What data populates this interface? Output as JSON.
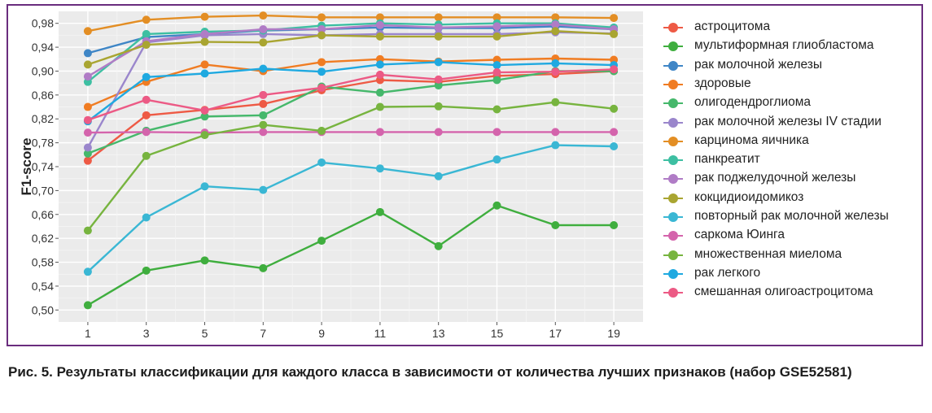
{
  "chart_data": {
    "type": "line",
    "ylabel": "F1-score",
    "x": [
      1,
      3,
      5,
      7,
      9,
      11,
      13,
      15,
      17,
      19
    ],
    "ylim": [
      0.48,
      1.0
    ],
    "yticks": [
      "0,50",
      "0,54",
      "0,58",
      "0,62",
      "0,66",
      "0,70",
      "0,74",
      "0,78",
      "0,82",
      "0,86",
      "0,90",
      "0,94",
      "0,98"
    ],
    "ytick_values": [
      0.5,
      0.54,
      0.58,
      0.62,
      0.66,
      0.7,
      0.74,
      0.78,
      0.82,
      0.86,
      0.9,
      0.94,
      0.98
    ],
    "grid": true,
    "legend_position": "right",
    "series": [
      {
        "name": "астроцитома",
        "color": "#ee5a45",
        "values": [
          0.75,
          0.826,
          0.835,
          0.845,
          0.868,
          0.885,
          0.882,
          0.892,
          0.895,
          0.9
        ]
      },
      {
        "name": "мультиформная глиобластома",
        "color": "#3fae3e",
        "values": [
          0.508,
          0.566,
          0.583,
          0.57,
          0.616,
          0.664,
          0.607,
          0.675,
          0.642,
          0.642
        ]
      },
      {
        "name": "рак молочной железы",
        "color": "#3f86c6",
        "values": [
          0.93,
          0.957,
          0.962,
          0.968,
          0.97,
          0.973,
          0.972,
          0.972,
          0.975,
          0.97
        ]
      },
      {
        "name": "здоровые",
        "color": "#f07c22",
        "values": [
          0.84,
          0.882,
          0.911,
          0.9,
          0.915,
          0.92,
          0.916,
          0.919,
          0.921,
          0.919
        ]
      },
      {
        "name": "олигодендроглиома",
        "color": "#45b86b",
        "values": [
          0.762,
          0.8,
          0.824,
          0.826,
          0.874,
          0.864,
          0.876,
          0.885,
          0.9,
          0.9
        ]
      },
      {
        "name": "рак молочной железы IV стадии",
        "color": "#9a86cc",
        "values": [
          0.772,
          0.948,
          0.96,
          0.962,
          0.96,
          0.962,
          0.962,
          0.962,
          0.965,
          0.963
        ]
      },
      {
        "name": "карцинома яичника",
        "color": "#e38e24",
        "values": [
          0.967,
          0.986,
          0.991,
          0.993,
          0.99,
          0.99,
          0.99,
          0.99,
          0.99,
          0.989
        ]
      },
      {
        "name": "панкреатит",
        "color": "#3dbfa2",
        "values": [
          0.882,
          0.962,
          0.966,
          0.968,
          0.976,
          0.98,
          0.978,
          0.98,
          0.98,
          0.973
        ]
      },
      {
        "name": "рак поджелудочной железы",
        "color": "#b07cc6",
        "values": [
          0.891,
          0.95,
          0.962,
          0.97,
          0.97,
          0.977,
          0.973,
          0.975,
          0.978,
          0.97
        ]
      },
      {
        "name": "кокцидиоидомикоз",
        "color": "#a9a531",
        "values": [
          0.911,
          0.944,
          0.949,
          0.948,
          0.96,
          0.958,
          0.958,
          0.958,
          0.967,
          0.962
        ]
      },
      {
        "name": "повторный рак молочной железы",
        "color": "#3ab7d4",
        "values": [
          0.564,
          0.655,
          0.707,
          0.701,
          0.747,
          0.737,
          0.724,
          0.752,
          0.776,
          0.774
        ]
      },
      {
        "name": "саркома Юинга",
        "color": "#d464ac",
        "values": [
          0.797,
          0.798,
          0.797,
          0.798,
          0.798,
          0.798,
          0.798,
          0.798,
          0.798,
          0.798
        ]
      },
      {
        "name": "множественная миелома",
        "color": "#77b43f",
        "values": [
          0.633,
          0.758,
          0.793,
          0.81,
          0.8,
          0.84,
          0.841,
          0.836,
          0.848,
          0.837
        ]
      },
      {
        "name": "рак легкого",
        "color": "#1fa9e0",
        "values": [
          0.816,
          0.89,
          0.896,
          0.904,
          0.899,
          0.911,
          0.915,
          0.91,
          0.913,
          0.91
        ]
      },
      {
        "name": "смешанная олигоастроцитома",
        "color": "#ec5a85",
        "values": [
          0.818,
          0.852,
          0.834,
          0.86,
          0.872,
          0.894,
          0.886,
          0.898,
          0.899,
          0.903
        ]
      }
    ]
  },
  "caption": "Рис. 5. Результаты классификации для каждого класса в зависимости от количества лучших признаков (набор GSE52581)"
}
